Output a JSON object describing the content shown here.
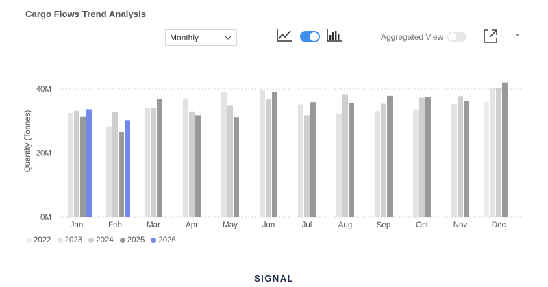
{
  "title": "Cargo Flows Trend Analysis",
  "controls": {
    "period_value": "Monthly",
    "aggregated_label": "Aggregated View",
    "toggle_color": "#3d8ef0"
  },
  "icons": [
    "line-chart-icon",
    "bar-chart-icon",
    "expand-icon",
    "more-icon"
  ],
  "logo_text": "SIGNAL",
  "chart_data": {
    "type": "bar",
    "title": "",
    "ylabel": "Quantity (Tonnes)",
    "xlabel": "",
    "ylim": [
      0,
      40000000
    ],
    "yticks": [
      {
        "value": 0,
        "label": "0M"
      },
      {
        "value": 20000000,
        "label": "20M"
      },
      {
        "value": 40000000,
        "label": "40M"
      }
    ],
    "grid": true,
    "legend_position": "bottom-left",
    "categories": [
      "Jan",
      "Feb",
      "Mar",
      "Apr",
      "May",
      "Jun",
      "Jul",
      "Aug",
      "Sep",
      "Oct",
      "Nov",
      "Dec"
    ],
    "series": [
      {
        "name": "2022",
        "color": "#ededed",
        "values": [
          null,
          null,
          null,
          null,
          null,
          null,
          null,
          null,
          null,
          null,
          null,
          36000000
        ]
      },
      {
        "name": "2023",
        "color": "#e3e3e3",
        "values": [
          32500000,
          28300000,
          34000000,
          37100000,
          38900000,
          39800000,
          35200000,
          32400000,
          33100000,
          33600000,
          35300000,
          40400000
        ]
      },
      {
        "name": "2024",
        "color": "#cfcfcf",
        "values": [
          33200000,
          32900000,
          34200000,
          33000000,
          34800000,
          36900000,
          31800000,
          38400000,
          35400000,
          37300000,
          37800000,
          40400000
        ]
      },
      {
        "name": "2025",
        "color": "#999999",
        "values": [
          31300000,
          26600000,
          36800000,
          31800000,
          31200000,
          39000000,
          35900000,
          35600000,
          37900000,
          37500000,
          36300000,
          42000000
        ]
      },
      {
        "name": "2026",
        "color": "#7288ee",
        "values": [
          33700000,
          30300000,
          null,
          null,
          null,
          null,
          null,
          null,
          null,
          null,
          null,
          null
        ]
      }
    ]
  }
}
